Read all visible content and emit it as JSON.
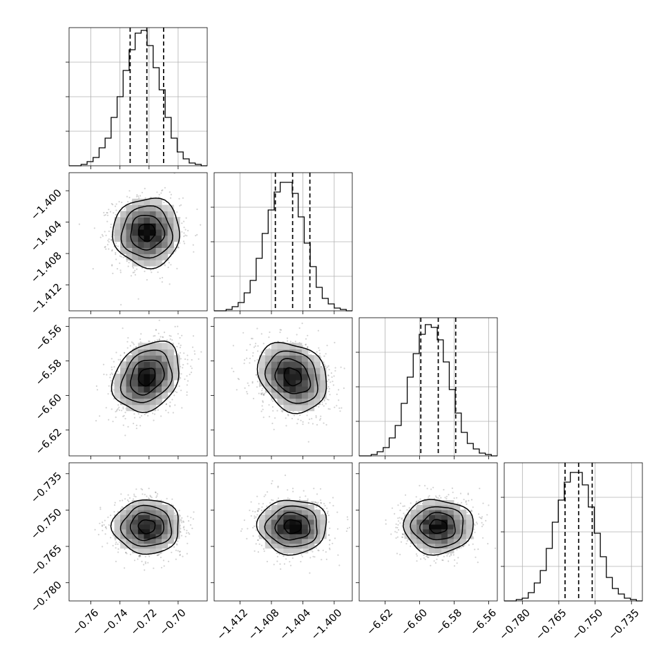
{
  "chart_data": {
    "type": "corner",
    "parameters": [
      {
        "index": 0,
        "range": [
          -0.775,
          -0.68
        ],
        "ticks": [
          -0.76,
          -0.74,
          -0.72,
          -0.7
        ],
        "tick_labels": [
          "−0.76",
          "−0.74",
          "−0.72",
          "−0.70"
        ],
        "quantiles": [
          -0.733,
          -0.7215,
          -0.71
        ],
        "mean": -0.7215,
        "sd": 0.0115
      },
      {
        "index": 1,
        "range": [
          -1.4153,
          -1.3977
        ],
        "ticks": [
          -1.412,
          -1.408,
          -1.404,
          -1.4
        ],
        "tick_labels": [
          "−1.412",
          "−1.408",
          "−1.404",
          "−1.400"
        ],
        "quantiles": [
          -1.4075,
          -1.4053,
          -1.4031
        ],
        "mean": -1.4053,
        "sd": 0.0022
      },
      {
        "index": 2,
        "range": [
          -6.635,
          -6.555
        ],
        "ticks": [
          -6.62,
          -6.6,
          -6.58,
          -6.56
        ],
        "tick_labels": [
          "−6.62",
          "−6.60",
          "−6.58",
          "−6.56"
        ],
        "quantiles": [
          -6.5993,
          -6.5892,
          -6.5791
        ],
        "mean": -6.5892,
        "sd": 0.0101
      },
      {
        "index": 3,
        "range": [
          -0.7875,
          -0.7305
        ],
        "ticks": [
          -0.78,
          -0.765,
          -0.75,
          -0.735
        ],
        "tick_labels": [
          "−0.780",
          "−0.765",
          "−0.750",
          "−0.735"
        ],
        "quantiles": [
          -0.7624,
          -0.7568,
          -0.7512
        ],
        "mean": -0.7568,
        "sd": 0.0056
      }
    ],
    "histograms": [
      [
        0.0,
        0.0,
        0.01,
        0.03,
        0.06,
        0.13,
        0.2,
        0.35,
        0.5,
        0.69,
        0.84,
        0.96,
        0.98,
        0.87,
        0.71,
        0.55,
        0.35,
        0.2,
        0.1,
        0.05,
        0.02,
        0.01,
        0.0
      ],
      [
        0.0,
        0.0,
        0.01,
        0.03,
        0.06,
        0.13,
        0.22,
        0.38,
        0.56,
        0.73,
        0.86,
        0.93,
        0.93,
        0.85,
        0.68,
        0.49,
        0.32,
        0.17,
        0.09,
        0.05,
        0.02,
        0.01,
        0.0
      ],
      [
        0.0,
        0.0,
        0.01,
        0.03,
        0.06,
        0.13,
        0.22,
        0.38,
        0.57,
        0.74,
        0.88,
        0.95,
        0.93,
        0.84,
        0.68,
        0.48,
        0.31,
        0.17,
        0.09,
        0.05,
        0.02,
        0.01,
        0.0
      ],
      [
        0.0,
        0.0,
        0.01,
        0.02,
        0.06,
        0.13,
        0.22,
        0.38,
        0.57,
        0.73,
        0.86,
        0.93,
        0.93,
        0.84,
        0.68,
        0.49,
        0.32,
        0.17,
        0.09,
        0.05,
        0.02,
        0.01,
        0.0
      ]
    ],
    "scatter_panels": [
      {
        "x": 0,
        "y": 1,
        "rho": 0.0
      },
      {
        "x": 0,
        "y": 2,
        "rho": 0.25
      },
      {
        "x": 1,
        "y": 2,
        "rho": -0.22
      },
      {
        "x": 0,
        "y": 3,
        "rho": 0.0
      },
      {
        "x": 1,
        "y": 3,
        "rho": 0.0
      },
      {
        "x": 2,
        "y": 3,
        "rho": 0.0
      }
    ],
    "contour_levels_sigma": [
      0.5,
      1.0,
      1.5,
      2.0
    ],
    "grid": true,
    "title": "",
    "xlabel": "",
    "ylabel": ""
  }
}
